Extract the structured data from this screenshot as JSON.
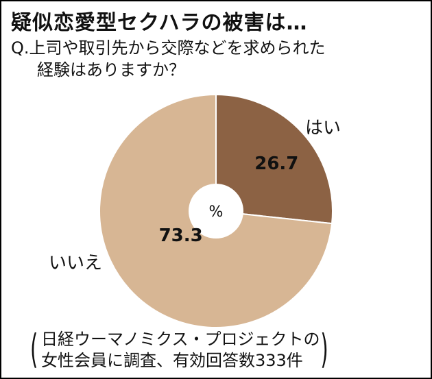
{
  "title": "疑似恋愛型セクハラの被害は…",
  "question": {
    "line1": "Q.上司や取引先から交際などを求められた",
    "line2": "経験はありますか？"
  },
  "source": {
    "line1": "日経ウーマノミクス・プロジェクトの",
    "line2": "女性会員に調査、有効回答数333件"
  },
  "chart_data": {
    "type": "pie",
    "title": "疑似恋愛型セクハラの被害は…",
    "unit": "%",
    "categories": [
      "はい",
      "いいえ"
    ],
    "values": [
      26.7,
      73.3
    ],
    "value_labels": [
      "26.7",
      "73.3"
    ],
    "colors": [
      "#8c6244",
      "#d7b694"
    ],
    "start": "12 o'clock, clockwise",
    "donut_hole": true
  }
}
